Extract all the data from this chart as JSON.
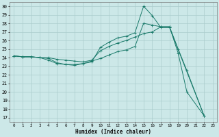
{
  "title": "",
  "xlabel": "Humidex (Indice chaleur)",
  "bg_color": "#cce8e8",
  "grid_color": "#aacccc",
  "line_color": "#1a7a6a",
  "xlim": [
    -0.5,
    23.5
  ],
  "ylim": [
    16.5,
    30.5
  ],
  "xticks": [
    0,
    1,
    2,
    3,
    4,
    5,
    6,
    7,
    8,
    9,
    10,
    11,
    12,
    13,
    14,
    15,
    16,
    17,
    18,
    19,
    20,
    21,
    22,
    23
  ],
  "yticks": [
    17,
    18,
    19,
    20,
    21,
    22,
    23,
    24,
    25,
    26,
    27,
    28,
    29,
    30
  ],
  "line1_x": [
    0,
    1,
    2,
    3,
    4,
    5,
    6,
    7,
    8,
    9,
    10,
    11,
    12,
    13,
    14,
    15,
    16,
    17,
    18,
    19,
    20,
    22
  ],
  "line1_y": [
    24.2,
    24.1,
    24.1,
    24.0,
    24.0,
    23.8,
    23.7,
    23.6,
    23.5,
    23.7,
    24.8,
    25.3,
    25.7,
    26.0,
    26.4,
    26.8,
    27.0,
    27.6,
    27.6,
    25.0,
    22.5,
    17.2
  ],
  "line2_x": [
    0,
    1,
    2,
    3,
    4,
    5,
    6,
    7,
    8,
    9,
    10,
    11,
    12,
    13,
    14,
    15,
    16,
    17,
    18,
    22
  ],
  "line2_y": [
    24.2,
    24.1,
    24.1,
    24.0,
    23.9,
    23.4,
    23.2,
    23.1,
    23.3,
    23.5,
    25.2,
    25.8,
    26.3,
    26.5,
    26.9,
    30.0,
    28.9,
    27.5,
    27.5,
    17.2
  ],
  "line3_x": [
    0,
    1,
    2,
    3,
    4,
    5,
    6,
    7,
    8,
    9,
    10,
    11,
    12,
    13,
    14,
    15,
    16,
    17,
    18,
    19,
    20,
    22
  ],
  "line3_y": [
    24.2,
    24.1,
    24.1,
    24.0,
    23.7,
    23.3,
    23.2,
    23.2,
    23.3,
    23.6,
    23.9,
    24.3,
    24.7,
    24.9,
    25.3,
    28.0,
    27.8,
    27.6,
    27.6,
    24.5,
    20.0,
    17.2
  ]
}
